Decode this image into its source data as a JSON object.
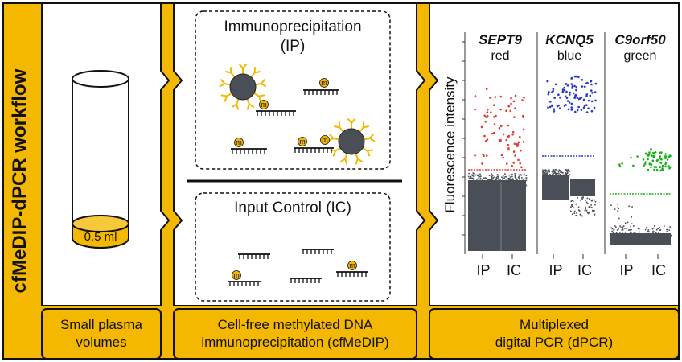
{
  "workflow_title": "cfMeDIP-dPCR workflow",
  "colors": {
    "accent": "#F5B800",
    "bead": "#4a4f57",
    "red": "#e03a32",
    "blue": "#2637c9",
    "green": "#18b018",
    "cloud": "#4a4f57"
  },
  "panels": [
    {
      "label_lines": [
        "Small plasma",
        "volumes"
      ]
    },
    {
      "label_lines": [
        "Cell-free methylated DNA",
        "immunoprecipitation (cfMeDIP)"
      ]
    },
    {
      "label_lines": [
        "Multiplexed",
        "digital PCR (dPCR)"
      ]
    }
  ],
  "tube": {
    "volume_label": "0.5 ml"
  },
  "ip_box": {
    "title_lines": [
      "Immunoprecipitation",
      "(IP)"
    ],
    "methyl_mark": "m"
  },
  "ic_box": {
    "title": "Input Control (IC)",
    "methyl_mark": "m"
  },
  "plot": {
    "ylabel": "Fluorescence intensity",
    "genes": [
      {
        "name": "SEPT9",
        "color_name": "red",
        "color": "#e03a32"
      },
      {
        "name": "KCNQ5",
        "color_name": "blue",
        "color": "#2637c9"
      },
      {
        "name": "C9orf50",
        "color_name": "green",
        "color": "#18b018"
      }
    ],
    "x_labels": [
      "IP",
      "IC"
    ]
  }
}
